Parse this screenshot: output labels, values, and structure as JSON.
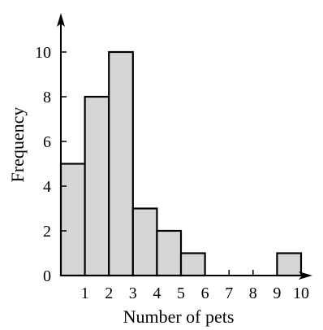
{
  "chart_data": {
    "type": "bar",
    "variant": "histogram",
    "xlabel": "Number of pets",
    "ylabel": "Frequency",
    "bin_edges": [
      0,
      1,
      2,
      3,
      4,
      5,
      6,
      7,
      8,
      9,
      10
    ],
    "values": [
      5,
      8,
      10,
      3,
      2,
      1,
      0,
      0,
      0,
      1
    ],
    "x_ticks": [
      1,
      2,
      3,
      4,
      5,
      6,
      7,
      8,
      9,
      10
    ],
    "y_ticks": [
      0,
      2,
      4,
      6,
      8,
      10
    ],
    "xlim": [
      0,
      10
    ],
    "ylim": [
      0,
      12
    ],
    "grid": false,
    "legend": "none",
    "colors": {
      "bar_fill": "#d6d6d6",
      "bar_stroke": "#000000",
      "axis": "#000000"
    }
  }
}
